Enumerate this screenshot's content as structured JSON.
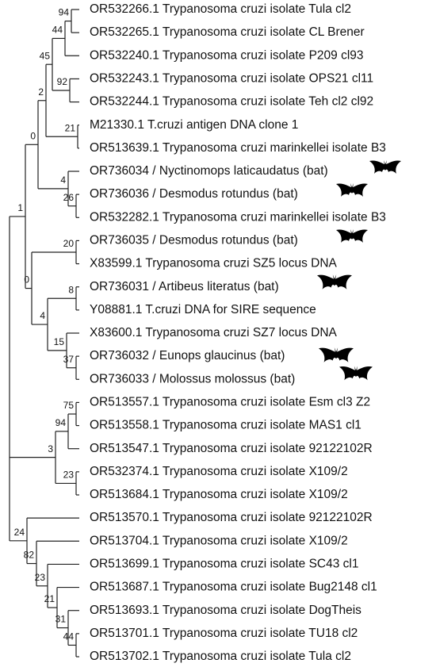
{
  "tree": {
    "leaves": [
      "OR532266.1 Trypanosoma cruzi isolate Tula cl2",
      "OR532265.1 Trypanosoma cruzi isolate CL Brener",
      "OR532240.1 Trypanosoma cruzi isolate P209 cl93",
      "OR532243.1 Trypanosoma cruzi isolate OPS21 cl11",
      "OR532244.1 Trypanosoma cruzi isolate Teh cl2 cl92",
      "M21330.1 T.cruzi antigen DNA clone 1",
      "OR513639.1 Trypanosoma cruzi marinkellei isolate B3",
      "OR736034 / Nyctinomops laticaudatus (bat)",
      "OR736036 / Desmodus rotundus (bat)",
      "OR532282.1 Trypanosoma cruzi marinkellei isolate B3",
      "OR736035 / Desmodus rotundus (bat)",
      "X83599.1 Trypanosoma cruzi SZ5 locus DNA",
      "OR736031 / Artibeus literatus (bat)",
      "Y08881.1 T.cruzi DNA for SIRE sequence",
      "X83600.1 Trypanosoma cruzi SZ7 locus DNA",
      "OR736032 / Eunops glaucinus (bat)",
      "OR736033 / Molossus molossus (bat)",
      "OR513557.1 Trypanosoma cruzi isolate Esm cl3 Z2",
      "OR513558.1 Trypanosoma cruzi isolate MAS1 cl1",
      "OR513547.1 Trypanosoma cruzi isolate 92122102R",
      "OR532374.1 Trypanosoma cruzi isolate X109/2",
      "OR513684.1 Trypanosoma cruzi isolate X109/2",
      "OR513570.1 Trypanosoma cruzi isolate 92122102R",
      "OR513704.1 Trypanosoma cruzi isolate X109/2",
      "OR513699.1 Trypanosoma cruzi isolate SC43 cl1",
      "OR513687.1 Trypanosoma cruzi isolate Bug2148 cl1",
      "OR513693.1 Trypanosoma cruzi isolate DogTheis",
      "OR513701.1 Trypanosoma cruzi isolate TU18 cl2",
      "OR513702.1 Trypanosoma cruzi isolate Tula cl2"
    ],
    "support": [
      94,
      44,
      92,
      45,
      21,
      2,
      26,
      4,
      0,
      20,
      8,
      37,
      15,
      4,
      0,
      1,
      75,
      94,
      23,
      3,
      44,
      31,
      21,
      23,
      82,
      24
    ]
  }
}
